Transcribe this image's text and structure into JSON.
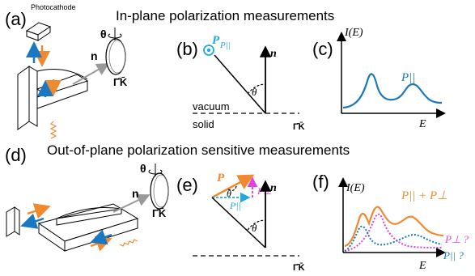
{
  "panels": {
    "a": "(a)",
    "b": "(b)",
    "c": "(c)",
    "d": "(d)",
    "e": "(e)",
    "f": "(f)"
  },
  "titles": {
    "top": "In-plane polarization measurements",
    "bottom": "Out-of-plane polarization sensitive measurements"
  },
  "labels": {
    "photocathode": "Photocathode",
    "theta": "θ",
    "n": "n",
    "gamma_k": "Γ̄K̄",
    "vacuum": "vacuum",
    "solid": "solid",
    "P": "P",
    "P_par": "P||",
    "P_perp": "P⊥",
    "I_E": "I(E)",
    "E": "E",
    "P_sum": "P|| + P⊥",
    "P_perp_q": "P⊥ ?",
    "P_par_q": "P|| ?"
  },
  "colors": {
    "orange": "#f08a30",
    "blue": "#1a78c2",
    "cyan": "#20a8e0",
    "magenta": "#e040e0",
    "teal": "#1a78b8",
    "black": "#000000"
  }
}
